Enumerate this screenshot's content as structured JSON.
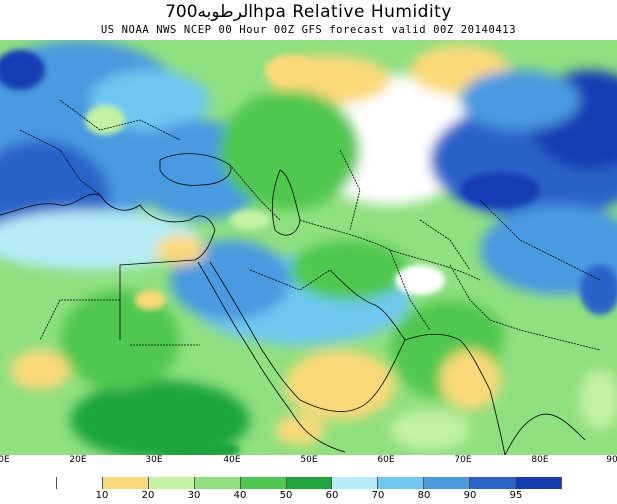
{
  "title": {
    "arabic": "الرطوبه",
    "main": "700hpa Relative Humidity"
  },
  "subtitle": "US NOAA NWS NCEP 00 Hour 00Z GFS forecast valid 00Z 20140413",
  "longitude_labels": [
    "0E",
    "20E",
    "30E",
    "40E",
    "50E",
    "60E",
    "70E",
    "80E",
    "90"
  ],
  "legend": {
    "colors": [
      "#ffffff",
      "#fbd978",
      "#c3f2a3",
      "#8fe07f",
      "#4fc84f",
      "#1ea53c",
      "#b5ecf8",
      "#6ec8f0",
      "#4a9ae0",
      "#2a64c8",
      "#143cb4"
    ],
    "labels": [
      "10",
      "20",
      "30",
      "40",
      "50",
      "60",
      "70",
      "80",
      "90",
      "95"
    ]
  },
  "colors": {
    "dry_yellow": "#fbd978",
    "light_green": "#c3f2a3",
    "green": "#4fc84f",
    "dark_green": "#1ea53c",
    "light_blue": "#6ec8f0",
    "blue": "#2a64c8",
    "dark_blue": "#143cb4",
    "coastline": "#000000"
  }
}
